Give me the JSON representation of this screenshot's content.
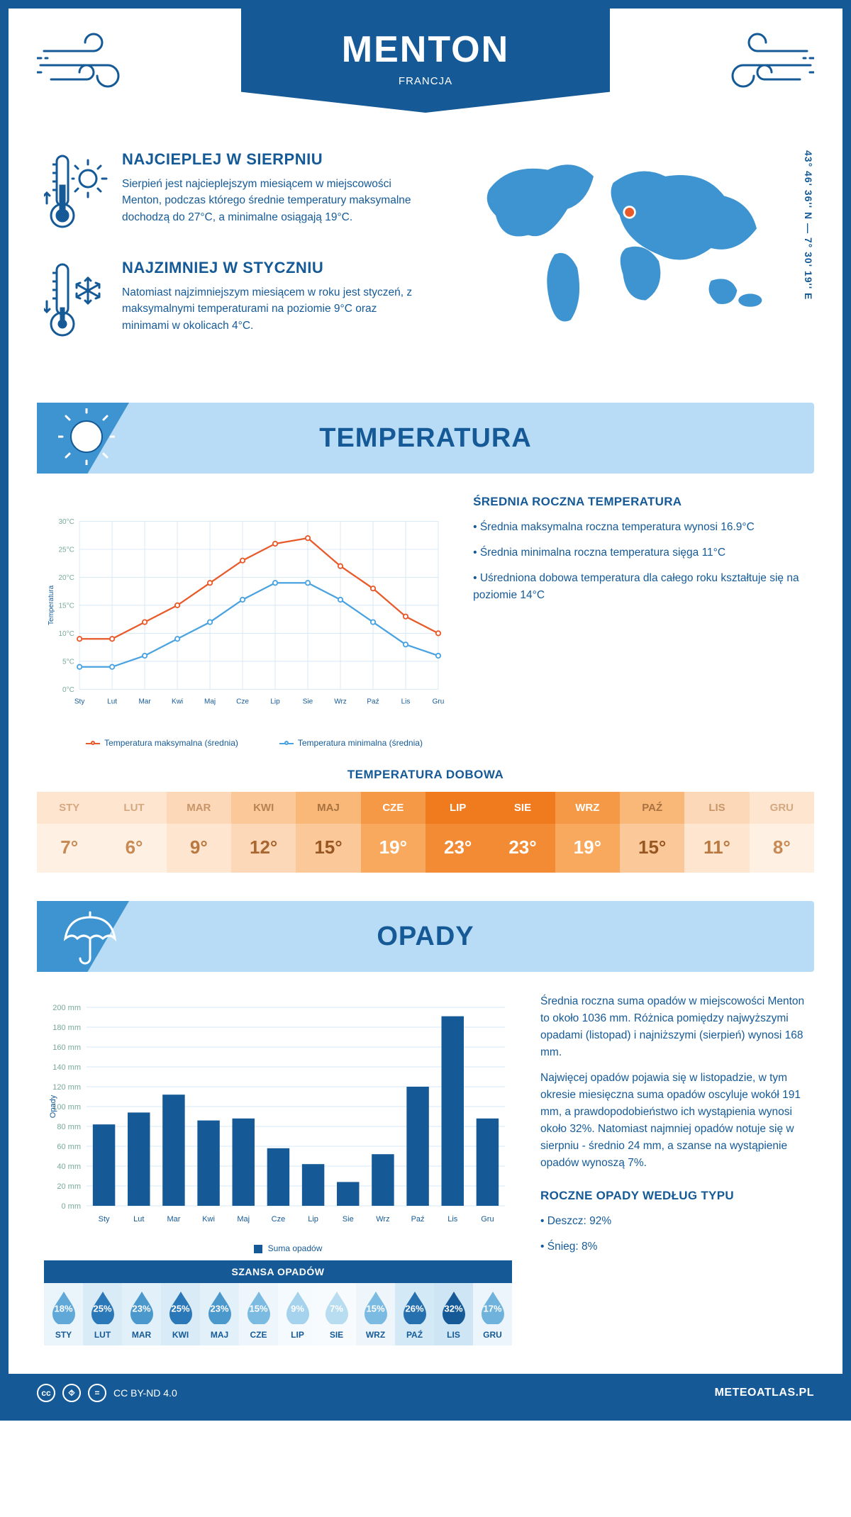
{
  "colors": {
    "primary": "#155a97",
    "light": "#b8dcf5",
    "medium": "#3e94d1",
    "chart_max": "#e85a2a",
    "chart_min": "#4aa3e0",
    "marker": "#e85a2a"
  },
  "header": {
    "city": "MENTON",
    "country": "FRANCJA"
  },
  "coords": "43° 46' 36'' N — 7° 30' 19'' E",
  "facts": {
    "warm": {
      "title": "NAJCIEPLEJ W SIERPNIU",
      "text": "Sierpień jest najcieplejszym miesiącem w miejscowości Menton, podczas którego średnie temperatury maksymalne dochodzą do 27°C, a minimalne osiągają 19°C."
    },
    "cold": {
      "title": "NAJZIMNIEJ W STYCZNIU",
      "text": "Natomiast najzimniejszym miesiącem w roku jest styczeń, z maksymalnymi temperaturami na poziomie 9°C oraz minimami w okolicach 4°C."
    }
  },
  "temp_section": {
    "heading": "TEMPERATURA",
    "chart": {
      "type": "line",
      "months": [
        "Sty",
        "Lut",
        "Mar",
        "Kwi",
        "Maj",
        "Cze",
        "Lip",
        "Sie",
        "Wrz",
        "Paź",
        "Lis",
        "Gru"
      ],
      "series": [
        {
          "name": "Temperatura maksymalna (średnia)",
          "color": "#e85a2a",
          "values": [
            9,
            9,
            12,
            15,
            19,
            23,
            26,
            27,
            22,
            18,
            13,
            10
          ]
        },
        {
          "name": "Temperatura minimalna (średnia)",
          "color": "#4aa3e0",
          "values": [
            4,
            4,
            6,
            9,
            12,
            16,
            19,
            19,
            16,
            12,
            8,
            6
          ]
        }
      ],
      "ylabel": "Temperatura",
      "ylim": [
        0,
        30
      ],
      "ytick_step": 5,
      "yunit": "°C",
      "grid_color": "#d6e8f5"
    },
    "summary": {
      "title": "ŚREDNIA ROCZNA TEMPERATURA",
      "bullets": [
        "Średnia maksymalna roczna temperatura wynosi 16.9°C",
        "Średnia minimalna roczna temperatura sięga 11°C",
        "Uśredniona dobowa temperatura dla całego roku kształtuje się na poziomie 14°C"
      ]
    },
    "daily": {
      "title": "TEMPERATURA DOBOWA",
      "months": [
        "STY",
        "LUT",
        "MAR",
        "KWI",
        "MAJ",
        "CZE",
        "LIP",
        "SIE",
        "WRZ",
        "PAŹ",
        "LIS",
        "GRU"
      ],
      "values": [
        "7°",
        "6°",
        "9°",
        "12°",
        "15°",
        "19°",
        "23°",
        "23°",
        "19°",
        "15°",
        "11°",
        "8°"
      ],
      "hd_colors": [
        "#fde5cf",
        "#fde5cf",
        "#fcd8b8",
        "#fbc89a",
        "#fab878",
        "#f69946",
        "#f07a1e",
        "#f07a1e",
        "#f69946",
        "#fab878",
        "#fcd8b8",
        "#fde5cf"
      ],
      "val_colors": [
        "#fef1e4",
        "#fef1e4",
        "#fde5cf",
        "#fcd8b8",
        "#fbc89a",
        "#f8a95e",
        "#f38a34",
        "#f38a34",
        "#f8a95e",
        "#fbc89a",
        "#fde5cf",
        "#fef1e4"
      ],
      "text_colors": [
        "#c78a55",
        "#c78a55",
        "#b87840",
        "#a86730",
        "#985720",
        "#ffffff",
        "#ffffff",
        "#ffffff",
        "#ffffff",
        "#985720",
        "#b87840",
        "#c78a55"
      ],
      "htext_colors": [
        "#d4a880",
        "#d4a880",
        "#c89568",
        "#b88350",
        "#a87240",
        "#ffffff",
        "#ffffff",
        "#ffffff",
        "#ffffff",
        "#a87240",
        "#c89568",
        "#d4a880"
      ]
    }
  },
  "precip_section": {
    "heading": "OPADY",
    "chart": {
      "type": "bar",
      "months": [
        "Sty",
        "Lut",
        "Mar",
        "Kwi",
        "Maj",
        "Cze",
        "Lip",
        "Sie",
        "Wrz",
        "Paź",
        "Lis",
        "Gru"
      ],
      "values": [
        82,
        94,
        112,
        86,
        88,
        58,
        42,
        24,
        52,
        120,
        191,
        88
      ],
      "bar_color": "#155a97",
      "ylabel": "Opady",
      "ylim": [
        0,
        200
      ],
      "ytick_step": 20,
      "yunit": " mm",
      "legend": "Suma opadów",
      "grid_color": "#d6e8f5"
    },
    "text": [
      "Średnia roczna suma opadów w miejscowości Menton to około 1036 mm. Różnica pomiędzy najwyższymi opadami (listopad) i najniższymi (sierpień) wynosi 168 mm.",
      "Najwięcej opadów pojawia się w listopadzie, w tym okresie miesięczna suma opadów oscyluje wokół 191 mm, a prawdopodobieństwo ich wystąpienia wynosi około 32%. Natomiast najmniej opadów notuje się w sierpniu - średnio 24 mm, a szanse na wystąpienie opadów wynoszą 7%."
    ],
    "chance": {
      "title": "SZANSA OPADÓW",
      "months": [
        "STY",
        "LUT",
        "MAR",
        "KWI",
        "MAJ",
        "CZE",
        "LIP",
        "SIE",
        "WRZ",
        "PAŹ",
        "LIS",
        "GRU"
      ],
      "values": [
        "18%",
        "25%",
        "23%",
        "25%",
        "23%",
        "15%",
        "9%",
        "7%",
        "15%",
        "26%",
        "32%",
        "17%"
      ],
      "drop_colors": [
        "#5fa8d8",
        "#2b78b8",
        "#4a98cc",
        "#2b78b8",
        "#4a98cc",
        "#7bbbe2",
        "#a5d2ec",
        "#b8dcf0",
        "#7bbbe2",
        "#2670b0",
        "#155a97",
        "#6fb2dc"
      ],
      "bg_colors": [
        "#eaf4fb",
        "#d8ebf7",
        "#e2f0f9",
        "#d8ebf7",
        "#e2f0f9",
        "#eef6fc",
        "#f4fafd",
        "#f7fbfe",
        "#eef6fc",
        "#d4e9f6",
        "#cde5f4",
        "#ecf5fb"
      ]
    },
    "bytype": {
      "title": "ROCZNE OPADY WEDŁUG TYPU",
      "items": [
        "Deszcz: 92%",
        "Śnieg: 8%"
      ]
    }
  },
  "footer": {
    "license": "CC BY-ND 4.0",
    "site": "METEOATLAS.PL"
  }
}
